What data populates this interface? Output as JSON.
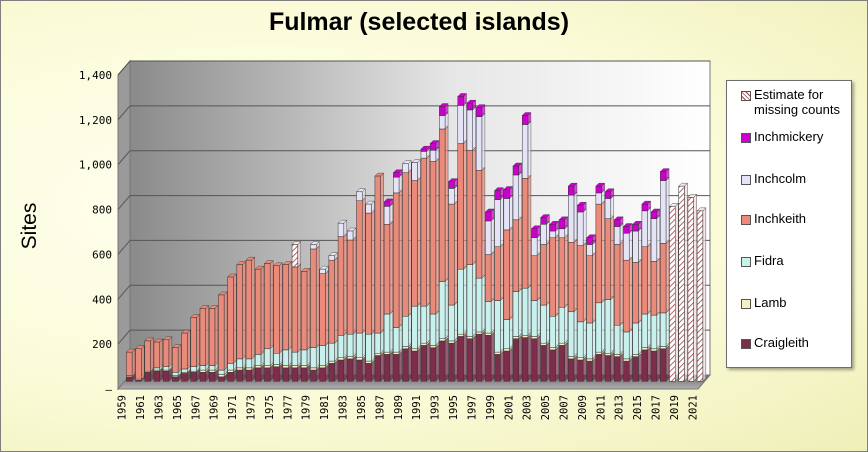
{
  "chart_data": {
    "type": "bar",
    "stacked": true,
    "title": "Fulmar (selected islands)",
    "xlabel": "",
    "ylabel": "Sites",
    "ylim": [
      0,
      1400
    ],
    "yticks": [
      0,
      200,
      400,
      600,
      800,
      1000,
      1200,
      1400
    ],
    "ytick_labels": [
      "–",
      "200",
      "400",
      "600",
      "800",
      "1,000",
      "1,200",
      "1,400"
    ],
    "grid": true,
    "legend_position": "right",
    "xtick_labels": [
      "1959",
      "1961",
      "1963",
      "1965",
      "1967",
      "1969",
      "1971",
      "1973",
      "1975",
      "1977",
      "1979",
      "1981",
      "1983",
      "1985",
      "1987",
      "1989",
      "1991",
      "1993",
      "1995",
      "1997",
      "1999",
      "2001",
      "2003",
      "2005",
      "2007",
      "2009",
      "2011",
      "2013",
      "2015",
      "2017",
      "2019",
      "2021"
    ],
    "categories": [
      "1959",
      "1960",
      "1961",
      "1962",
      "1963",
      "1964",
      "1965",
      "1966",
      "1967",
      "1968",
      "1969",
      "1970",
      "1971",
      "1972",
      "1973",
      "1974",
      "1975",
      "1976",
      "1977",
      "1978",
      "1979",
      "1980",
      "1981",
      "1982",
      "1983",
      "1984",
      "1985",
      "1986",
      "1987",
      "1988",
      "1989",
      "1990",
      "1991",
      "1992",
      "1993",
      "1994",
      "1995",
      "1996",
      "1997",
      "1998",
      "1999",
      "2000",
      "2001",
      "2002",
      "2003",
      "2004",
      "2005",
      "2006",
      "2007",
      "2008",
      "2009",
      "2010",
      "2011",
      "2012",
      "2013",
      "2014",
      "2015",
      "2016",
      "2017",
      "2018",
      "2019",
      "2020",
      "2021"
    ],
    "series": [
      {
        "name": "Craigleith",
        "color": "#7b2d4a",
        "values": [
          20,
          5,
          40,
          45,
          45,
          20,
          35,
          40,
          40,
          40,
          20,
          40,
          50,
          50,
          60,
          60,
          65,
          60,
          60,
          60,
          50,
          60,
          80,
          95,
          100,
          95,
          80,
          115,
          120,
          120,
          145,
          135,
          160,
          150,
          180,
          170,
          200,
          190,
          210,
          205,
          120,
          135,
          190,
          195,
          190,
          160,
          140,
          160,
          100,
          95,
          90,
          120,
          115,
          110,
          90,
          110,
          140,
          135,
          145,
          0,
          0,
          0,
          0
        ]
      },
      {
        "name": "Lamb",
        "color": "#f5f0c0",
        "values": [
          5,
          5,
          5,
          5,
          5,
          5,
          5,
          5,
          10,
          10,
          10,
          10,
          10,
          10,
          10,
          10,
          10,
          10,
          10,
          10,
          10,
          10,
          10,
          10,
          10,
          10,
          10,
          10,
          10,
          10,
          10,
          10,
          10,
          10,
          10,
          10,
          10,
          10,
          10,
          10,
          10,
          10,
          10,
          10,
          10,
          10,
          10,
          10,
          10,
          10,
          10,
          10,
          10,
          10,
          10,
          10,
          10,
          10,
          10,
          0,
          0,
          0,
          0
        ]
      },
      {
        "name": "Fidra",
        "color": "#c8f0ec",
        "values": [
          0,
          0,
          0,
          10,
          15,
          15,
          15,
          20,
          20,
          20,
          20,
          30,
          40,
          40,
          50,
          75,
          50,
          70,
          60,
          70,
          90,
          90,
          80,
          100,
          100,
          110,
          120,
          90,
          170,
          110,
          135,
          190,
          165,
          140,
          255,
          160,
          290,
          320,
          240,
          140,
          230,
          130,
          200,
          210,
          160,
          170,
          140,
          160,
          200,
          160,
          160,
          220,
          240,
          130,
          120,
          140,
          150,
          150,
          150,
          0,
          0,
          0,
          0
        ]
      },
      {
        "name": "Inchkeith",
        "color": "#e98a7a",
        "values": [
          105,
          135,
          135,
          115,
          120,
          110,
          160,
          220,
          255,
          255,
          335,
          385,
          420,
          440,
          380,
          380,
          390,
          380,
          380,
          350,
          440,
          320,
          370,
          440,
          420,
          590,
          540,
          700,
          400,
          600,
          640,
          560,
          660,
          680,
          680,
          450,
          560,
          510,
          480,
          210,
          240,
          400,
          320,
          490,
          200,
          270,
          350,
          310,
          310,
          340,
          300,
          440,
          360,
          360,
          320,
          270,
          300,
          240,
          310,
          0,
          0,
          0,
          0
        ]
      },
      {
        "name": "Inchcolm",
        "color": "#e4e4f6",
        "values": [
          0,
          0,
          0,
          0,
          0,
          0,
          0,
          0,
          0,
          0,
          0,
          0,
          0,
          0,
          0,
          0,
          0,
          0,
          0,
          0,
          20,
          20,
          20,
          60,
          40,
          40,
          40,
          0,
          80,
          70,
          40,
          80,
          30,
          50,
          60,
          70,
          170,
          180,
          240,
          150,
          210,
          140,
          200,
          240,
          80,
          90,
          30,
          40,
          210,
          150,
          50,
          50,
          90,
          80,
          120,
          140,
          160,
          190,
          280,
          0,
          0,
          0,
          0
        ]
      },
      {
        "name": "Inchmickery",
        "color": "#cc00cc",
        "values": [
          0,
          0,
          0,
          0,
          0,
          0,
          0,
          0,
          0,
          0,
          0,
          0,
          0,
          0,
          0,
          0,
          0,
          0,
          0,
          0,
          0,
          0,
          0,
          0,
          0,
          0,
          0,
          0,
          20,
          20,
          0,
          0,
          10,
          30,
          40,
          30,
          40,
          30,
          40,
          40,
          40,
          40,
          40,
          40,
          40,
          30,
          30,
          40,
          40,
          30,
          30,
          30,
          30,
          30,
          30,
          30,
          30,
          30,
          40,
          0,
          0,
          0,
          0
        ]
      },
      {
        "name": "Estimate for missing counts",
        "color": "#ffffff",
        "pattern": true,
        "values": [
          0,
          0,
          0,
          0,
          0,
          0,
          0,
          0,
          0,
          0,
          0,
          0,
          0,
          0,
          0,
          0,
          0,
          0,
          100,
          0,
          0,
          0,
          0,
          0,
          0,
          0,
          0,
          0,
          0,
          0,
          0,
          0,
          0,
          0,
          0,
          0,
          0,
          0,
          0,
          0,
          0,
          0,
          0,
          0,
          0,
          0,
          0,
          0,
          0,
          0,
          0,
          0,
          0,
          0,
          0,
          0,
          0,
          0,
          0,
          780,
          870,
          820,
          760
        ]
      }
    ]
  },
  "legend": {
    "items": [
      {
        "label": "Estimate for missing counts",
        "color": "#ffffff",
        "pattern": true
      },
      {
        "label": "Inchmickery",
        "color": "#cc00cc"
      },
      {
        "label": "Inchcolm",
        "color": "#e4e4f6"
      },
      {
        "label": "Inchkeith",
        "color": "#e98a7a"
      },
      {
        "label": "Fidra",
        "color": "#c8f0ec"
      },
      {
        "label": "Lamb",
        "color": "#f5f0c0"
      },
      {
        "label": "Craigleith",
        "color": "#7b2d4a"
      }
    ]
  }
}
